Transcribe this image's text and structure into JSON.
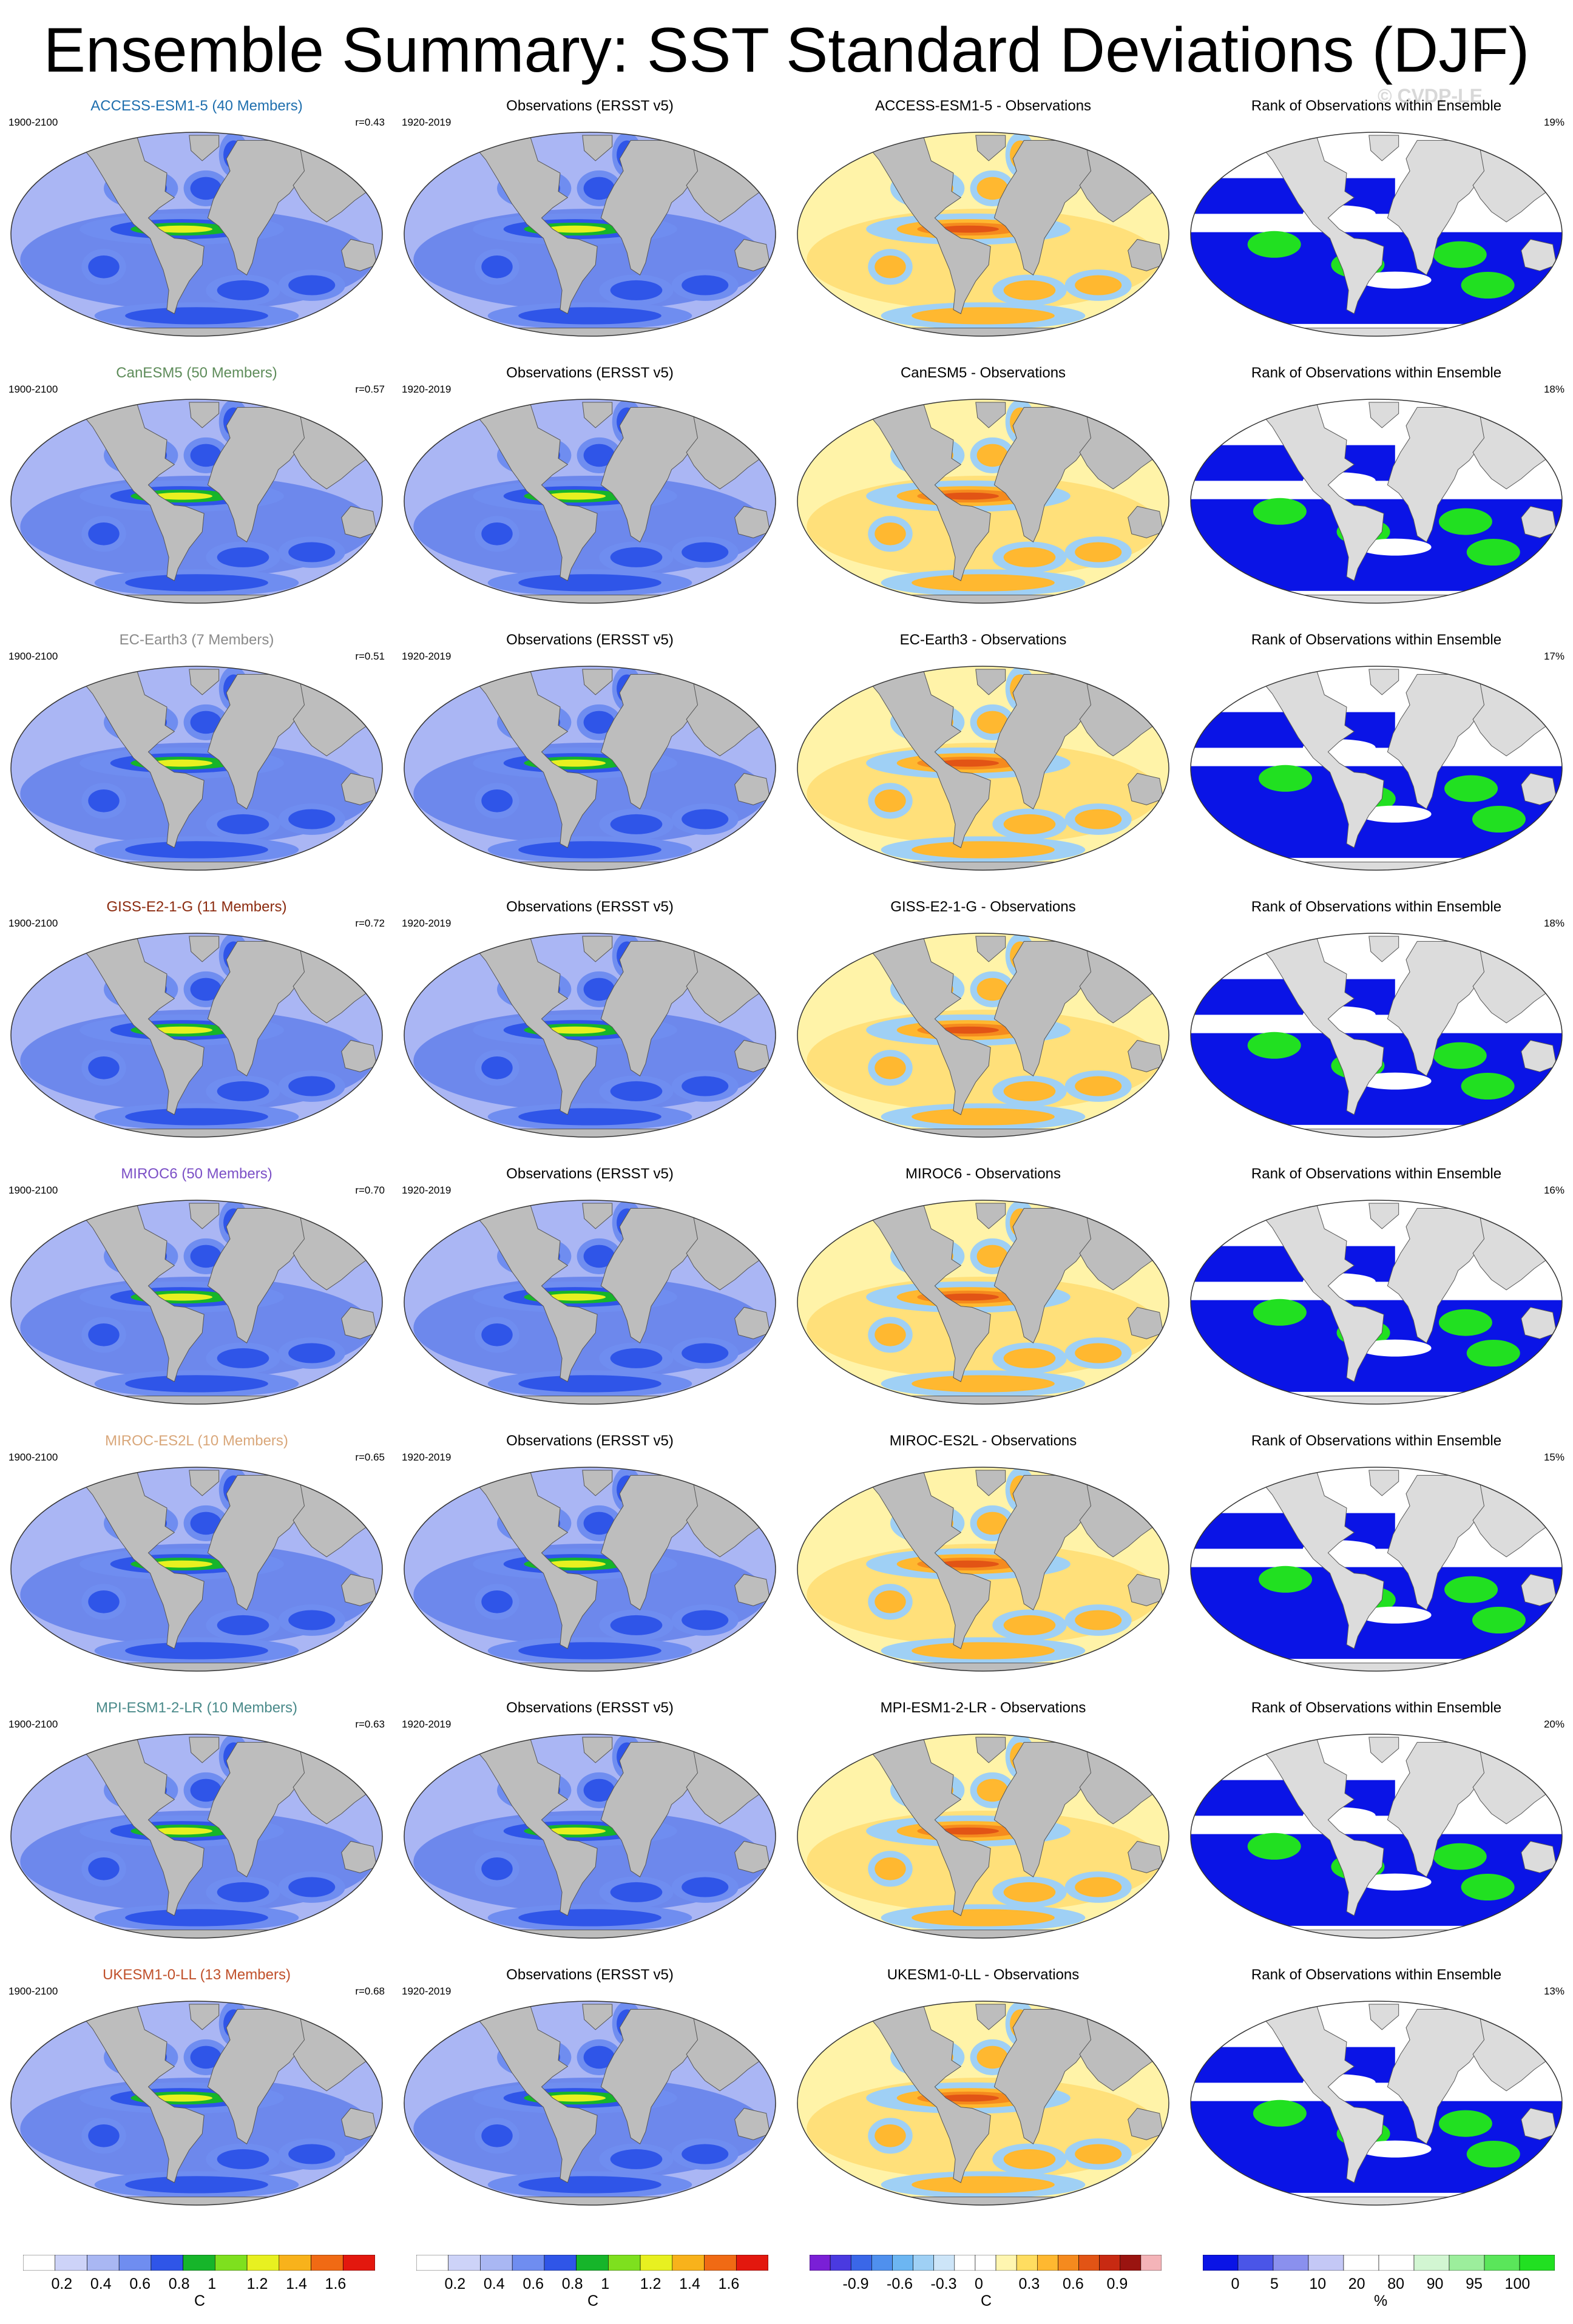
{
  "page": {
    "title": "Ensemble Summary: SST Standard Deviations (DJF)",
    "credit": "© CVDP-LE"
  },
  "colors": {
    "land": "#bdbdbd",
    "ocean_low": "#aab6f4",
    "ocean_mid": "#6d88ec",
    "rank_blue": "#0a14e6",
    "rank_green": "#21e021",
    "rank_white": "#ffffff"
  },
  "rows": [
    {
      "model": "ACCESS-ESM1-5 (40 Members)",
      "model_color": "#1f6fae",
      "model_period": "1900-2100",
      "r": "r=0.43",
      "obs_title": "Observations (ERSST v5)",
      "obs_period": "1920-2019",
      "diff_title": "ACCESS-ESM1-5 - Observations",
      "rank_title": "Rank of Observations within Ensemble",
      "rank_pct": "19%"
    },
    {
      "model": "CanESM5 (50 Members)",
      "model_color": "#5e8c5a",
      "model_period": "1900-2100",
      "r": "r=0.57",
      "obs_title": "Observations (ERSST v5)",
      "obs_period": "1920-2019",
      "diff_title": "CanESM5 - Observations",
      "rank_title": "Rank of Observations within Ensemble",
      "rank_pct": "18%"
    },
    {
      "model": "EC-Earth3 (7 Members)",
      "model_color": "#8a8a8a",
      "model_period": "1900-2100",
      "r": "r=0.51",
      "obs_title": "Observations (ERSST v5)",
      "obs_period": "1920-2019",
      "diff_title": "EC-Earth3 - Observations",
      "rank_title": "Rank of Observations within Ensemble",
      "rank_pct": "17%"
    },
    {
      "model": "GISS-E2-1-G (11 Members)",
      "model_color": "#8b2a0e",
      "model_period": "1900-2100",
      "r": "r=0.72",
      "obs_title": "Observations (ERSST v5)",
      "obs_period": "1920-2019",
      "diff_title": "GISS-E2-1-G - Observations",
      "rank_title": "Rank of Observations within Ensemble",
      "rank_pct": "18%"
    },
    {
      "model": "MIROC6 (50 Members)",
      "model_color": "#7b4fc6",
      "model_period": "1900-2100",
      "r": "r=0.70",
      "obs_title": "Observations (ERSST v5)",
      "obs_period": "1920-2019",
      "diff_title": "MIROC6 - Observations",
      "rank_title": "Rank of Observations within Ensemble",
      "rank_pct": "16%"
    },
    {
      "model": "MIROC-ES2L (10 Members)",
      "model_color": "#d9a77a",
      "model_period": "1900-2100",
      "r": "r=0.65",
      "obs_title": "Observations (ERSST v5)",
      "obs_period": "1920-2019",
      "diff_title": "MIROC-ES2L - Observations",
      "rank_title": "Rank of Observations within Ensemble",
      "rank_pct": "15%"
    },
    {
      "model": "MPI-ESM1-2-LR (10 Members)",
      "model_color": "#4a8a8a",
      "model_period": "1900-2100",
      "r": "r=0.63",
      "obs_title": "Observations (ERSST v5)",
      "obs_period": "1920-2019",
      "diff_title": "MPI-ESM1-2-LR - Observations",
      "rank_title": "Rank of Observations within Ensemble",
      "rank_pct": "20%"
    },
    {
      "model": "UKESM1-0-LL (13 Members)",
      "model_color": "#c0502a",
      "model_period": "1900-2100",
      "r": "r=0.68",
      "obs_title": "Observations (ERSST v5)",
      "obs_period": "1920-2019",
      "diff_title": "UKESM1-0-LL - Observations",
      "rank_title": "Rank of Observations within Ensemble",
      "rank_pct": "13%"
    }
  ],
  "colorbars": [
    {
      "unit": "C",
      "labels": [
        "0.2",
        "0.4",
        "0.6",
        "0.8",
        "1",
        "1.2",
        "1.4",
        "1.6"
      ],
      "colors": [
        "#ffffff",
        "#cdd3f8",
        "#a9b7f3",
        "#6f8df0",
        "#2f55e8",
        "#16b52a",
        "#7ee01e",
        "#e8f020",
        "#f8b21b",
        "#f06a14",
        "#e3180e"
      ]
    },
    {
      "unit": "C",
      "labels": [
        "0.2",
        "0.4",
        "0.6",
        "0.8",
        "1",
        "1.2",
        "1.4",
        "1.6"
      ],
      "colors": [
        "#ffffff",
        "#cdd3f8",
        "#a9b7f3",
        "#6f8df0",
        "#2f55e8",
        "#16b52a",
        "#7ee01e",
        "#e8f020",
        "#f8b21b",
        "#f06a14",
        "#e3180e"
      ]
    },
    {
      "unit": "C",
      "labels": [
        "-0.9",
        "-0.6",
        "-0.3",
        "0",
        "0.3",
        "0.6",
        "0.9"
      ],
      "colors": [
        "#7a1fd6",
        "#4a3ae0",
        "#3a67e8",
        "#4f90ee",
        "#6cb6f2",
        "#9fd0f5",
        "#cde5f8",
        "#ffffff",
        "#ffffff",
        "#fff6b0",
        "#ffdd60",
        "#ffb830",
        "#f58a1e",
        "#e25415",
        "#c82a12",
        "#9a1410",
        "#f4b4b8"
      ]
    },
    {
      "unit": "%",
      "labels": [
        "0",
        "5",
        "10",
        "20",
        "80",
        "90",
        "95",
        "100"
      ],
      "colors": [
        "#0a14e6",
        "#4a55e8",
        "#8a90ee",
        "#c4c8f6",
        "#ffffff",
        "#ffffff",
        "#d2f6d2",
        "#9cee9c",
        "#5ae65a",
        "#21e021"
      ]
    }
  ]
}
